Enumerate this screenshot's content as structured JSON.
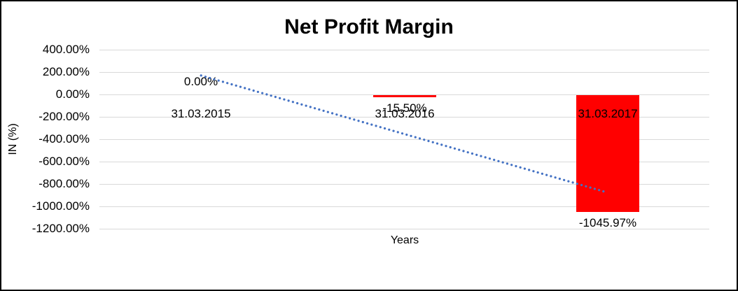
{
  "chart_data": {
    "type": "bar",
    "title": "Net Profit Margin",
    "xlabel": "Years",
    "ylabel": "IN (%)",
    "categories": [
      "31.03.2015",
      "31.03.2016",
      "31.03.2017"
    ],
    "values": [
      0,
      -15.5,
      -1045.97
    ],
    "data_labels": [
      "0.00%",
      "-15.50%",
      "-1045.97%"
    ],
    "y_ticks": [
      {
        "value": 400,
        "label": "400.00%"
      },
      {
        "value": 200,
        "label": "200.00%"
      },
      {
        "value": 0,
        "label": "0.00%"
      },
      {
        "value": -200,
        "label": "-200.00%"
      },
      {
        "value": -400,
        "label": "-400.00%"
      },
      {
        "value": -600,
        "label": "-600.00%"
      },
      {
        "value": -800,
        "label": "-800.00%"
      },
      {
        "value": -1000,
        "label": "-1000.00%"
      },
      {
        "value": -1200,
        "label": "-1200.00%"
      }
    ],
    "ylim": [
      -1200,
      400
    ],
    "grid": true,
    "legend": false,
    "bar_color": "#FF0000",
    "gridline_color": "#D9D9D9",
    "trendline": {
      "type": "linear",
      "style": "dotted",
      "color": "#4472C4"
    }
  }
}
